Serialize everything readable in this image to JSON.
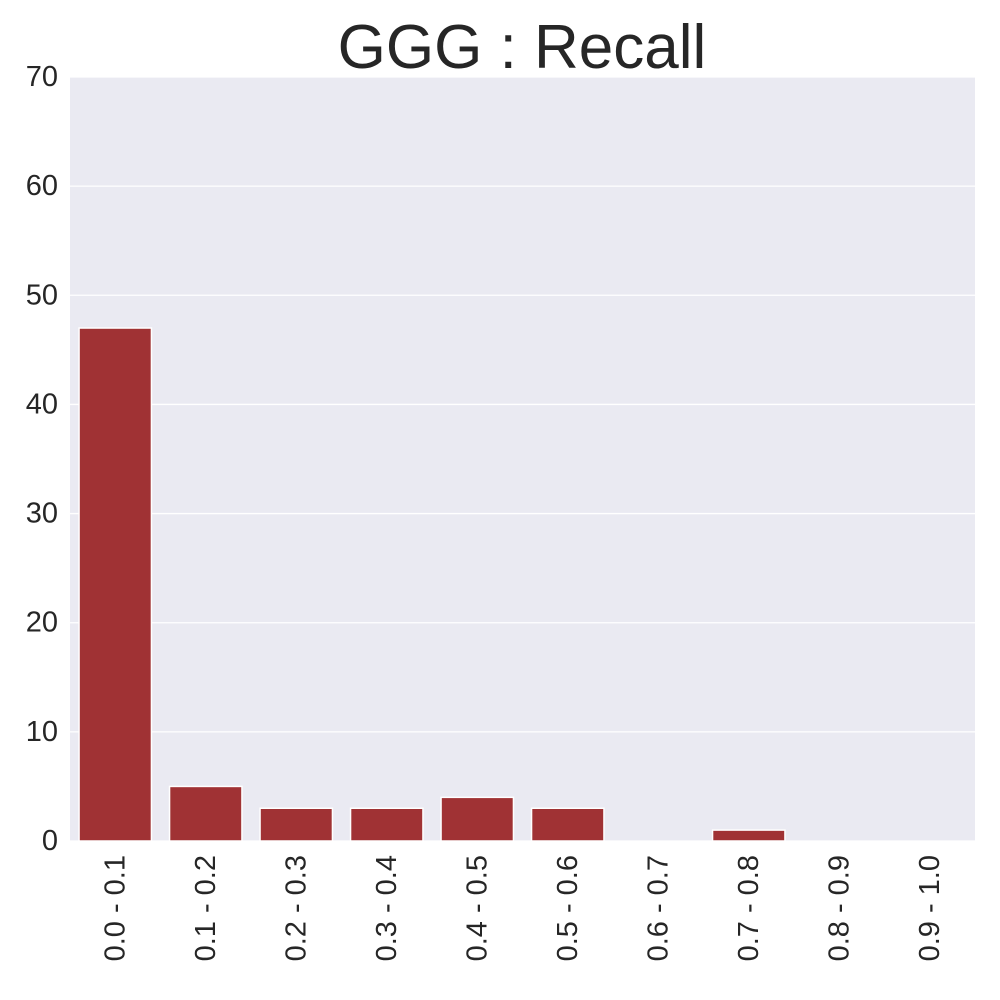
{
  "chart_data": {
    "type": "bar",
    "title": "GGG : Recall",
    "xlabel": "",
    "ylabel": "",
    "categories": [
      "0.0 - 0.1",
      "0.1 - 0.2",
      "0.2 - 0.3",
      "0.3 - 0.4",
      "0.4 - 0.5",
      "0.5 - 0.6",
      "0.6 - 0.7",
      "0.7 - 0.8",
      "0.8 - 0.9",
      "0.9 - 1.0"
    ],
    "values": [
      47,
      5,
      3,
      3,
      4,
      3,
      0,
      1,
      0,
      0
    ],
    "ylim": [
      0,
      70
    ],
    "yticks": [
      0,
      10,
      20,
      30,
      40,
      50,
      60,
      70
    ],
    "grid": true,
    "legend": "none",
    "colors": {
      "bar": "#a03234",
      "plot_background": "#eaeaf2",
      "grid": "#ffffff",
      "text": "#262626"
    }
  }
}
